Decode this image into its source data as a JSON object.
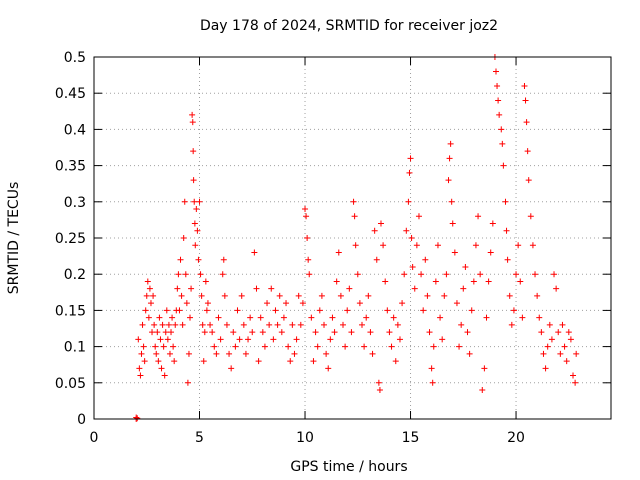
{
  "chart_data": {
    "type": "scatter",
    "title": "Day 178 of 2024, SRMTID for receiver joz2",
    "xlabel": "GPS time / hours",
    "ylabel": "SRMTID / TECUs",
    "xlim": [
      0,
      24.5
    ],
    "ylim": [
      0,
      0.5
    ],
    "x_ticks": [
      0,
      5,
      10,
      15,
      20
    ],
    "x_tick_labels": [
      "0",
      "5",
      "10",
      "15",
      "20"
    ],
    "y_ticks": [
      0,
      0.05,
      0.1,
      0.15,
      0.2,
      0.25,
      0.3,
      0.35,
      0.4,
      0.45,
      0.5
    ],
    "y_tick_labels": [
      "0",
      "0.05",
      "0.1",
      "0.15",
      "0.2",
      "0.25",
      "0.3",
      "0.35",
      "0.4",
      "0.45",
      "0.5"
    ],
    "grid": true,
    "marker": "+",
    "color": "#ff0000",
    "series": [
      {
        "name": "SRMTID",
        "points": [
          [
            2.0,
            0.0
          ],
          [
            2.0,
            0.002
          ],
          [
            2.05,
            0.001
          ],
          [
            2.1,
            0.11
          ],
          [
            2.15,
            0.07
          ],
          [
            2.2,
            0.06
          ],
          [
            2.25,
            0.09
          ],
          [
            2.3,
            0.13
          ],
          [
            2.35,
            0.1
          ],
          [
            2.4,
            0.08
          ],
          [
            2.45,
            0.15
          ],
          [
            2.5,
            0.17
          ],
          [
            2.55,
            0.19
          ],
          [
            2.6,
            0.14
          ],
          [
            2.65,
            0.18
          ],
          [
            2.7,
            0.16
          ],
          [
            2.75,
            0.12
          ],
          [
            2.8,
            0.17
          ],
          [
            2.85,
            0.13
          ],
          [
            2.9,
            0.1
          ],
          [
            2.95,
            0.09
          ],
          [
            3.0,
            0.12
          ],
          [
            3.05,
            0.08
          ],
          [
            3.1,
            0.14
          ],
          [
            3.15,
            0.11
          ],
          [
            3.2,
            0.07
          ],
          [
            3.25,
            0.13
          ],
          [
            3.3,
            0.1
          ],
          [
            3.35,
            0.06
          ],
          [
            3.4,
            0.12
          ],
          [
            3.45,
            0.15
          ],
          [
            3.5,
            0.11
          ],
          [
            3.55,
            0.13
          ],
          [
            3.6,
            0.09
          ],
          [
            3.65,
            0.12
          ],
          [
            3.7,
            0.14
          ],
          [
            3.75,
            0.1
          ],
          [
            3.8,
            0.08
          ],
          [
            3.85,
            0.13
          ],
          [
            3.9,
            0.15
          ],
          [
            3.95,
            0.18
          ],
          [
            4.0,
            0.2
          ],
          [
            4.05,
            0.15
          ],
          [
            4.1,
            0.22
          ],
          [
            4.15,
            0.17
          ],
          [
            4.2,
            0.13
          ],
          [
            4.25,
            0.25
          ],
          [
            4.3,
            0.3
          ],
          [
            4.35,
            0.2
          ],
          [
            4.4,
            0.16
          ],
          [
            4.45,
            0.05
          ],
          [
            4.5,
            0.09
          ],
          [
            4.55,
            0.14
          ],
          [
            4.6,
            0.18
          ],
          [
            4.65,
            0.42
          ],
          [
            4.68,
            0.41
          ],
          [
            4.7,
            0.37
          ],
          [
            4.72,
            0.33
          ],
          [
            4.75,
            0.3
          ],
          [
            4.78,
            0.27
          ],
          [
            4.8,
            0.24
          ],
          [
            4.85,
            0.29
          ],
          [
            4.9,
            0.26
          ],
          [
            4.95,
            0.22
          ],
          [
            5.0,
            0.3
          ],
          [
            5.05,
            0.2
          ],
          [
            5.1,
            0.17
          ],
          [
            5.15,
            0.13
          ],
          [
            5.2,
            0.08
          ],
          [
            5.25,
            0.12
          ],
          [
            5.3,
            0.19
          ],
          [
            5.35,
            0.15
          ],
          [
            5.4,
            0.16
          ],
          [
            5.5,
            0.13
          ],
          [
            5.6,
            0.12
          ],
          [
            5.7,
            0.1
          ],
          [
            5.8,
            0.09
          ],
          [
            5.9,
            0.14
          ],
          [
            6.0,
            0.11
          ],
          [
            6.1,
            0.2
          ],
          [
            6.15,
            0.22
          ],
          [
            6.2,
            0.17
          ],
          [
            6.3,
            0.13
          ],
          [
            6.4,
            0.09
          ],
          [
            6.5,
            0.07
          ],
          [
            6.6,
            0.12
          ],
          [
            6.7,
            0.1
          ],
          [
            6.8,
            0.15
          ],
          [
            6.9,
            0.11
          ],
          [
            7.0,
            0.17
          ],
          [
            7.1,
            0.13
          ],
          [
            7.2,
            0.09
          ],
          [
            7.3,
            0.11
          ],
          [
            7.4,
            0.14
          ],
          [
            7.5,
            0.12
          ],
          [
            7.6,
            0.23
          ],
          [
            7.7,
            0.18
          ],
          [
            7.8,
            0.08
          ],
          [
            7.9,
            0.14
          ],
          [
            8.0,
            0.12
          ],
          [
            8.1,
            0.1
          ],
          [
            8.2,
            0.16
          ],
          [
            8.3,
            0.13
          ],
          [
            8.4,
            0.18
          ],
          [
            8.5,
            0.11
          ],
          [
            8.6,
            0.15
          ],
          [
            8.7,
            0.13
          ],
          [
            8.8,
            0.17
          ],
          [
            8.9,
            0.12
          ],
          [
            9.0,
            0.14
          ],
          [
            9.1,
            0.16
          ],
          [
            9.2,
            0.1
          ],
          [
            9.3,
            0.08
          ],
          [
            9.4,
            0.13
          ],
          [
            9.5,
            0.09
          ],
          [
            9.6,
            0.11
          ],
          [
            9.7,
            0.17
          ],
          [
            9.8,
            0.13
          ],
          [
            9.9,
            0.16
          ],
          [
            10.0,
            0.29
          ],
          [
            10.05,
            0.28
          ],
          [
            10.1,
            0.25
          ],
          [
            10.15,
            0.22
          ],
          [
            10.2,
            0.2
          ],
          [
            10.3,
            0.14
          ],
          [
            10.4,
            0.08
          ],
          [
            10.5,
            0.12
          ],
          [
            10.6,
            0.1
          ],
          [
            10.7,
            0.15
          ],
          [
            10.8,
            0.17
          ],
          [
            10.9,
            0.13
          ],
          [
            11.0,
            0.09
          ],
          [
            11.1,
            0.07
          ],
          [
            11.2,
            0.11
          ],
          [
            11.3,
            0.14
          ],
          [
            11.4,
            0.12
          ],
          [
            11.5,
            0.19
          ],
          [
            11.6,
            0.23
          ],
          [
            11.7,
            0.17
          ],
          [
            11.8,
            0.13
          ],
          [
            11.9,
            0.1
          ],
          [
            12.0,
            0.15
          ],
          [
            12.1,
            0.18
          ],
          [
            12.2,
            0.12
          ],
          [
            12.3,
            0.3
          ],
          [
            12.35,
            0.28
          ],
          [
            12.4,
            0.24
          ],
          [
            12.5,
            0.2
          ],
          [
            12.6,
            0.16
          ],
          [
            12.7,
            0.13
          ],
          [
            12.8,
            0.1
          ],
          [
            12.9,
            0.14
          ],
          [
            13.0,
            0.17
          ],
          [
            13.1,
            0.12
          ],
          [
            13.2,
            0.09
          ],
          [
            13.3,
            0.26
          ],
          [
            13.4,
            0.22
          ],
          [
            13.5,
            0.05
          ],
          [
            13.55,
            0.04
          ],
          [
            13.6,
            0.27
          ],
          [
            13.7,
            0.24
          ],
          [
            13.8,
            0.19
          ],
          [
            13.9,
            0.15
          ],
          [
            14.0,
            0.12
          ],
          [
            14.1,
            0.1
          ],
          [
            14.2,
            0.14
          ],
          [
            14.3,
            0.08
          ],
          [
            14.4,
            0.13
          ],
          [
            14.5,
            0.11
          ],
          [
            14.6,
            0.16
          ],
          [
            14.7,
            0.2
          ],
          [
            14.8,
            0.26
          ],
          [
            14.9,
            0.3
          ],
          [
            14.95,
            0.34
          ],
          [
            15.0,
            0.36
          ],
          [
            15.05,
            0.25
          ],
          [
            15.1,
            0.21
          ],
          [
            15.2,
            0.18
          ],
          [
            15.3,
            0.24
          ],
          [
            15.4,
            0.28
          ],
          [
            15.5,
            0.2
          ],
          [
            15.6,
            0.15
          ],
          [
            15.7,
            0.22
          ],
          [
            15.8,
            0.17
          ],
          [
            15.9,
            0.12
          ],
          [
            16.0,
            0.07
          ],
          [
            16.05,
            0.05
          ],
          [
            16.1,
            0.1
          ],
          [
            16.2,
            0.19
          ],
          [
            16.3,
            0.24
          ],
          [
            16.4,
            0.14
          ],
          [
            16.5,
            0.11
          ],
          [
            16.6,
            0.17
          ],
          [
            16.7,
            0.2
          ],
          [
            16.8,
            0.33
          ],
          [
            16.85,
            0.36
          ],
          [
            16.9,
            0.38
          ],
          [
            16.95,
            0.3
          ],
          [
            17.0,
            0.27
          ],
          [
            17.1,
            0.23
          ],
          [
            17.2,
            0.16
          ],
          [
            17.3,
            0.1
          ],
          [
            17.4,
            0.13
          ],
          [
            17.5,
            0.18
          ],
          [
            17.6,
            0.21
          ],
          [
            17.7,
            0.12
          ],
          [
            17.8,
            0.09
          ],
          [
            17.9,
            0.15
          ],
          [
            18.0,
            0.19
          ],
          [
            18.1,
            0.24
          ],
          [
            18.2,
            0.28
          ],
          [
            18.3,
            0.2
          ],
          [
            18.4,
            0.04
          ],
          [
            18.5,
            0.07
          ],
          [
            18.6,
            0.14
          ],
          [
            18.7,
            0.19
          ],
          [
            18.8,
            0.23
          ],
          [
            18.9,
            0.27
          ],
          [
            19.0,
            0.5
          ],
          [
            19.05,
            0.48
          ],
          [
            19.1,
            0.46
          ],
          [
            19.15,
            0.44
          ],
          [
            19.2,
            0.42
          ],
          [
            19.3,
            0.4
          ],
          [
            19.35,
            0.38
          ],
          [
            19.4,
            0.35
          ],
          [
            19.5,
            0.3
          ],
          [
            19.55,
            0.26
          ],
          [
            19.6,
            0.22
          ],
          [
            19.7,
            0.17
          ],
          [
            19.8,
            0.13
          ],
          [
            19.9,
            0.15
          ],
          [
            20.0,
            0.2
          ],
          [
            20.1,
            0.24
          ],
          [
            20.2,
            0.19
          ],
          [
            20.3,
            0.14
          ],
          [
            20.4,
            0.46
          ],
          [
            20.45,
            0.44
          ],
          [
            20.5,
            0.41
          ],
          [
            20.55,
            0.37
          ],
          [
            20.6,
            0.33
          ],
          [
            20.7,
            0.28
          ],
          [
            20.8,
            0.24
          ],
          [
            20.9,
            0.2
          ],
          [
            21.0,
            0.17
          ],
          [
            21.1,
            0.14
          ],
          [
            21.2,
            0.12
          ],
          [
            21.3,
            0.09
          ],
          [
            21.4,
            0.07
          ],
          [
            21.5,
            0.1
          ],
          [
            21.6,
            0.13
          ],
          [
            21.7,
            0.11
          ],
          [
            21.8,
            0.2
          ],
          [
            21.9,
            0.18
          ],
          [
            22.0,
            0.12
          ],
          [
            22.1,
            0.09
          ],
          [
            22.2,
            0.13
          ],
          [
            22.3,
            0.1
          ],
          [
            22.4,
            0.08
          ],
          [
            22.5,
            0.12
          ],
          [
            22.6,
            0.11
          ],
          [
            22.7,
            0.06
          ],
          [
            22.8,
            0.05
          ],
          [
            22.85,
            0.09
          ]
        ]
      }
    ]
  }
}
